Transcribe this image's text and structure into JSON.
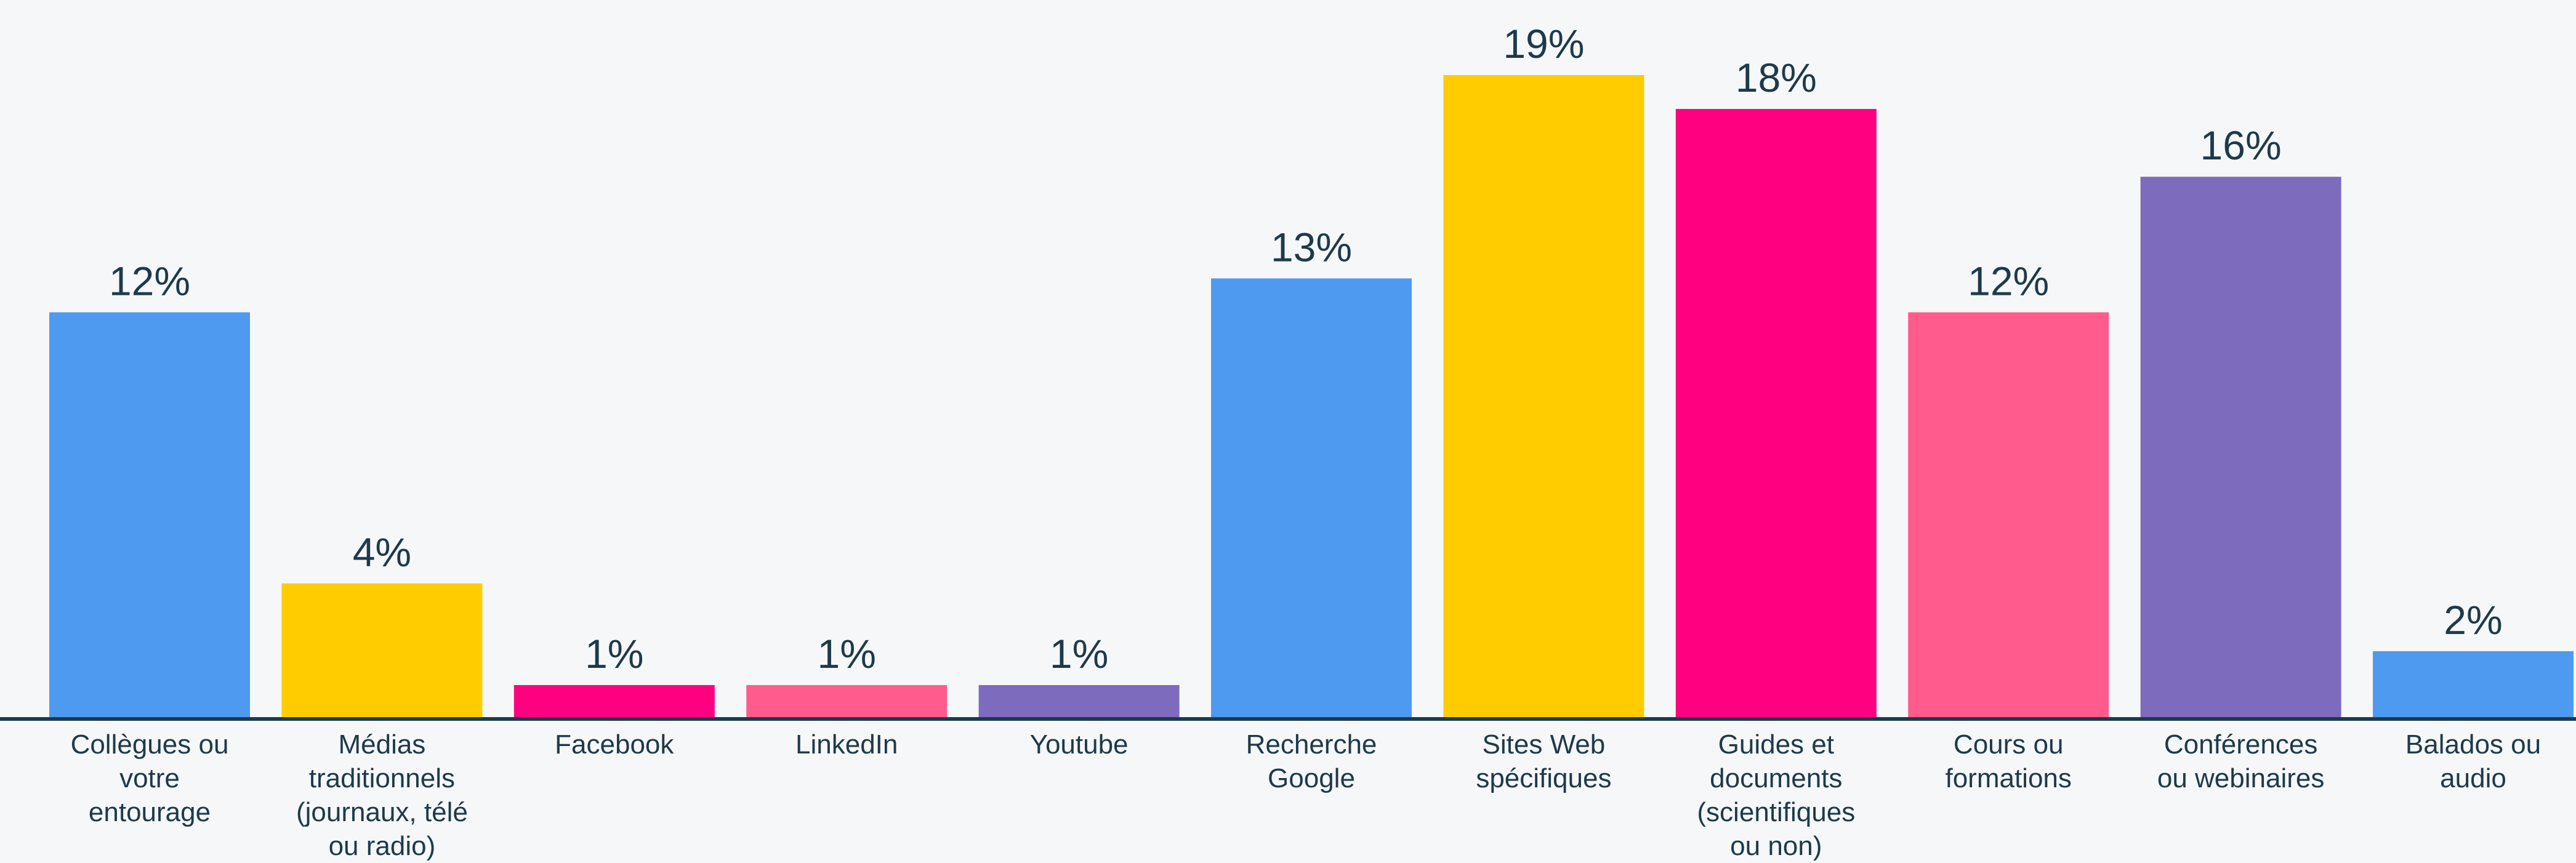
{
  "chart_data": {
    "type": "bar",
    "title": "",
    "xlabel": "",
    "ylabel": "",
    "ylim": [
      0,
      19
    ],
    "grid": false,
    "categories": [
      "Collègues ou votre entourage",
      "Médias traditionnels (journaux, télé ou radio)",
      "Facebook",
      "LinkedIn",
      "Youtube",
      "Recherche Google",
      "Sites Web spécifiques",
      "Guides et documents (scientifiques ou non)",
      "Cours ou formations",
      "Conférences ou webinaires",
      "Balados ou audio"
    ],
    "category_lines": [
      [
        "Collègues ou",
        "votre",
        "entourage"
      ],
      [
        "Médias",
        "traditionnels",
        "(journaux, télé",
        "ou radio)"
      ],
      [
        "Facebook"
      ],
      [
        "LinkedIn"
      ],
      [
        "Youtube"
      ],
      [
        "Recherche",
        "Google"
      ],
      [
        "Sites Web",
        "spécifiques"
      ],
      [
        "Guides et",
        "documents",
        "(scientifiques",
        "ou non)"
      ],
      [
        "Cours ou",
        "formations"
      ],
      [
        "Conférences",
        "ou webinaires"
      ],
      [
        "Balados ou",
        "audio"
      ]
    ],
    "values": [
      12,
      4,
      1,
      1,
      1,
      13,
      19,
      18,
      12,
      16,
      2
    ],
    "value_labels": [
      "12%",
      "4%",
      "1%",
      "1%",
      "1%",
      "13%",
      "19%",
      "18%",
      "12%",
      "16%",
      "2%"
    ],
    "colors": [
      "#4e9af0",
      "#ffcc00",
      "#ff0080",
      "#ff5c8d",
      "#7d6bbd",
      "#4e9af0",
      "#ffcc00",
      "#ff0080",
      "#ff5c8d",
      "#7d6bbd",
      "#4e9af0"
    ],
    "axis_color": "#1d3a4a"
  }
}
